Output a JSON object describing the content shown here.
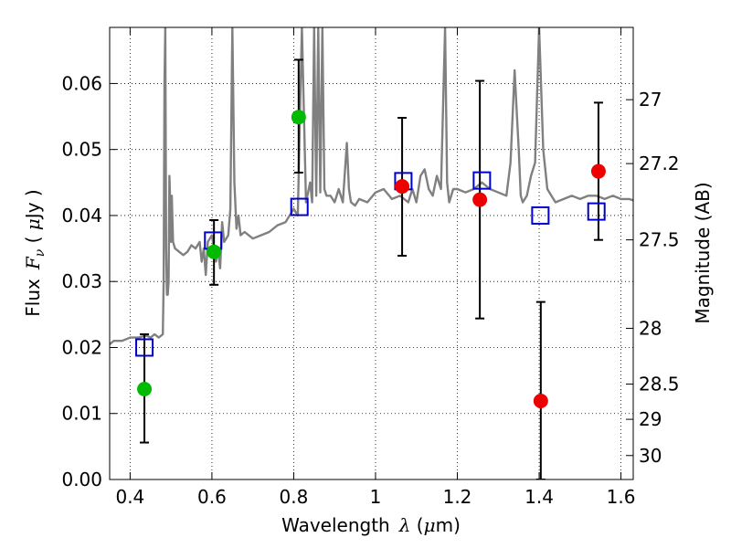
{
  "chart_data": {
    "type": "scatter",
    "xlabel": {
      "prefix": "Wavelength",
      "symbol": "λ",
      "unit_open": " (",
      "unit_mu": "μ",
      "unit_rest": "m)"
    },
    "ylabel": {
      "prefix": "Flux",
      "symbol": "F",
      "subscript": "ν",
      "unit_open": " ( ",
      "unit_mu": "μ",
      "unit_rest": "Jy )"
    },
    "y2label": "Magnitude (AB)",
    "xlim": [
      0.35,
      1.63
    ],
    "ylim": [
      0.0,
      0.0685
    ],
    "grid": true,
    "x_ticks": [
      {
        "v": 0.4,
        "label": "0.4"
      },
      {
        "v": 0.6,
        "label": "0.6"
      },
      {
        "v": 0.8,
        "label": "0.8"
      },
      {
        "v": 1.0,
        "label": "1"
      },
      {
        "v": 1.2,
        "label": "1.2"
      },
      {
        "v": 1.4,
        "label": "1.4"
      },
      {
        "v": 1.6,
        "label": "1.6"
      }
    ],
    "y_ticks": [
      {
        "v": 0.0,
        "label": "0.00"
      },
      {
        "v": 0.01,
        "label": "0.01"
      },
      {
        "v": 0.02,
        "label": "0.02"
      },
      {
        "v": 0.03,
        "label": "0.03"
      },
      {
        "v": 0.04,
        "label": "0.04"
      },
      {
        "v": 0.05,
        "label": "0.05"
      },
      {
        "v": 0.06,
        "label": "0.06"
      }
    ],
    "y2_ticks": [
      {
        "mag": 27,
        "label": "27"
      },
      {
        "mag": 27.2,
        "label": "27.2"
      },
      {
        "mag": 27.5,
        "label": "27.5"
      },
      {
        "mag": 28,
        "label": "28"
      },
      {
        "mag": 28.5,
        "label": "28.5"
      },
      {
        "mag": 29,
        "label": "29"
      },
      {
        "mag": 30,
        "label": "30"
      }
    ],
    "colors": {
      "model": "#808080",
      "green": "#00bb00",
      "red": "#ee0000",
      "square": "#0000cc",
      "errorbar": "#000000"
    },
    "model_spectrum": {
      "x": [
        0.35,
        0.36,
        0.38,
        0.4,
        0.42,
        0.44,
        0.45,
        0.46,
        0.47,
        0.48,
        0.482,
        0.484,
        0.486,
        0.488,
        0.49,
        0.492,
        0.494,
        0.496,
        0.498,
        0.5,
        0.502,
        0.505,
        0.51,
        0.52,
        0.53,
        0.54,
        0.55,
        0.56,
        0.57,
        0.575,
        0.58,
        0.585,
        0.59,
        0.6,
        0.61,
        0.615,
        0.62,
        0.625,
        0.63,
        0.64,
        0.645,
        0.65,
        0.655,
        0.66,
        0.665,
        0.67,
        0.68,
        0.7,
        0.72,
        0.74,
        0.76,
        0.78,
        0.8,
        0.81,
        0.82,
        0.83,
        0.84,
        0.845,
        0.85,
        0.855,
        0.86,
        0.865,
        0.87,
        0.875,
        0.88,
        0.89,
        0.9,
        0.91,
        0.92,
        0.93,
        0.935,
        0.94,
        0.95,
        0.96,
        0.98,
        1.0,
        1.02,
        1.04,
        1.06,
        1.08,
        1.09,
        1.1,
        1.11,
        1.12,
        1.13,
        1.14,
        1.15,
        1.16,
        1.17,
        1.175,
        1.18,
        1.19,
        1.2,
        1.22,
        1.24,
        1.26,
        1.28,
        1.3,
        1.32,
        1.33,
        1.34,
        1.345,
        1.35,
        1.355,
        1.36,
        1.37,
        1.38,
        1.39,
        1.4,
        1.41,
        1.42,
        1.44,
        1.46,
        1.48,
        1.5,
        1.52,
        1.54,
        1.56,
        1.58,
        1.6,
        1.62,
        1.63
      ],
      "y": [
        0.0205,
        0.021,
        0.021,
        0.0215,
        0.0215,
        0.0218,
        0.0215,
        0.022,
        0.0215,
        0.022,
        0.03,
        0.06,
        0.0685,
        0.035,
        0.028,
        0.028,
        0.03,
        0.046,
        0.042,
        0.036,
        0.043,
        0.036,
        0.035,
        0.0345,
        0.034,
        0.0345,
        0.0355,
        0.035,
        0.036,
        0.033,
        0.035,
        0.031,
        0.036,
        0.037,
        0.033,
        0.035,
        0.032,
        0.039,
        0.036,
        0.037,
        0.041,
        0.0685,
        0.045,
        0.038,
        0.04,
        0.037,
        0.0375,
        0.0365,
        0.037,
        0.0375,
        0.0385,
        0.039,
        0.041,
        0.04,
        0.0685,
        0.042,
        0.045,
        0.042,
        0.0685,
        0.043,
        0.0685,
        0.0435,
        0.0685,
        0.044,
        0.043,
        0.043,
        0.042,
        0.044,
        0.042,
        0.051,
        0.044,
        0.042,
        0.0415,
        0.0425,
        0.042,
        0.0435,
        0.044,
        0.0425,
        0.043,
        0.042,
        0.044,
        0.042,
        0.046,
        0.047,
        0.044,
        0.043,
        0.046,
        0.044,
        0.0685,
        0.045,
        0.042,
        0.044,
        0.044,
        0.0435,
        0.044,
        0.045,
        0.044,
        0.0435,
        0.043,
        0.048,
        0.062,
        0.056,
        0.05,
        0.043,
        0.042,
        0.043,
        0.046,
        0.048,
        0.0685,
        0.05,
        0.044,
        0.042,
        0.0425,
        0.043,
        0.0425,
        0.043,
        0.043,
        0.0425,
        0.043,
        0.0425,
        0.0425,
        0.0423
      ]
    },
    "green_points": [
      {
        "x": 0.435,
        "y": 0.0137,
        "err": [
          0.0056,
          0.022
        ]
      },
      {
        "x": 0.605,
        "y": 0.0345,
        "err": [
          0.0295,
          0.0393
        ]
      },
      {
        "x": 0.812,
        "y": 0.0549,
        "err": [
          0.0465,
          0.0636
        ]
      }
    ],
    "red_points": [
      {
        "x": 1.065,
        "y": 0.0444,
        "err": [
          0.0339,
          0.0548
        ]
      },
      {
        "x": 1.255,
        "y": 0.0424,
        "err": [
          0.0244,
          0.0604
        ]
      },
      {
        "x": 1.404,
        "y": 0.0119,
        "err": [
          0.0,
          0.0269
        ]
      },
      {
        "x": 1.545,
        "y": 0.0467,
        "err": [
          0.0363,
          0.0571
        ]
      }
    ],
    "model_squares": [
      {
        "x": 0.435,
        "y": 0.02
      },
      {
        "x": 0.603,
        "y": 0.0362
      },
      {
        "x": 0.814,
        "y": 0.0413
      },
      {
        "x": 1.068,
        "y": 0.0452
      },
      {
        "x": 1.26,
        "y": 0.0453
      },
      {
        "x": 1.403,
        "y": 0.04
      },
      {
        "x": 1.54,
        "y": 0.0406
      }
    ]
  }
}
